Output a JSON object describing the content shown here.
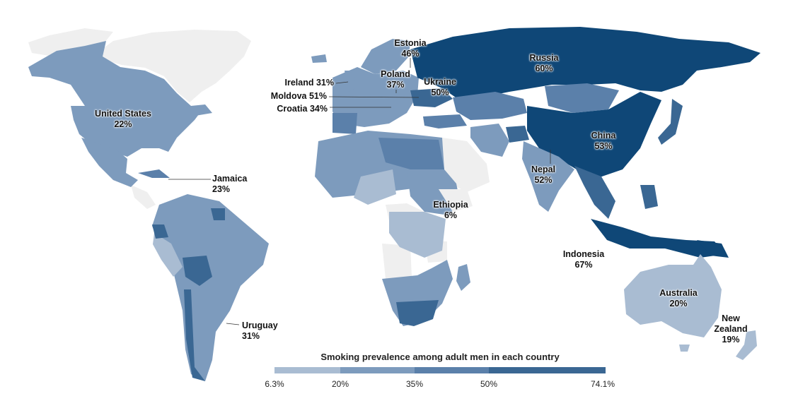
{
  "legend": {
    "title": "Smoking prevalence among adult men in each country",
    "ticks": [
      "6.3%",
      "20%",
      "35%",
      "50%",
      "74.1%"
    ],
    "colors": [
      "#a9bcd2",
      "#7d9bbd",
      "#5b80aa",
      "#3a6793",
      "#0f4777"
    ],
    "no_data_color": "#efefef"
  },
  "labels": {
    "russia": {
      "name": "Russia",
      "value": "60%"
    },
    "china": {
      "name": "China",
      "value": "53%"
    },
    "nepal": {
      "name": "Nepal",
      "value": "52%"
    },
    "indonesia": {
      "name": "Indonesia",
      "value": "67%"
    },
    "australia": {
      "name": "Australia",
      "value": "20%"
    },
    "new_zealand": {
      "name1": "New",
      "name2": "Zealand",
      "value": "19%"
    },
    "ethiopia": {
      "name": "Ethiopia",
      "value": "6%"
    },
    "united_states": {
      "name": "United States",
      "value": "22%"
    },
    "jamaica": {
      "name": "Jamaica",
      "value": "23%"
    },
    "uruguay": {
      "name": "Uruguay",
      "value": "31%"
    },
    "estonia": {
      "name": "Estonia",
      "value": "46%"
    },
    "poland": {
      "name": "Poland",
      "value": "37%"
    },
    "ukraine": {
      "name": "Ukraine",
      "value": "50%"
    },
    "ireland": {
      "name": "Ireland",
      "value": "31%"
    },
    "moldova": {
      "name": "Moldova",
      "value": "51%"
    },
    "croatia": {
      "name": "Croatia",
      "value": "34%"
    }
  }
}
